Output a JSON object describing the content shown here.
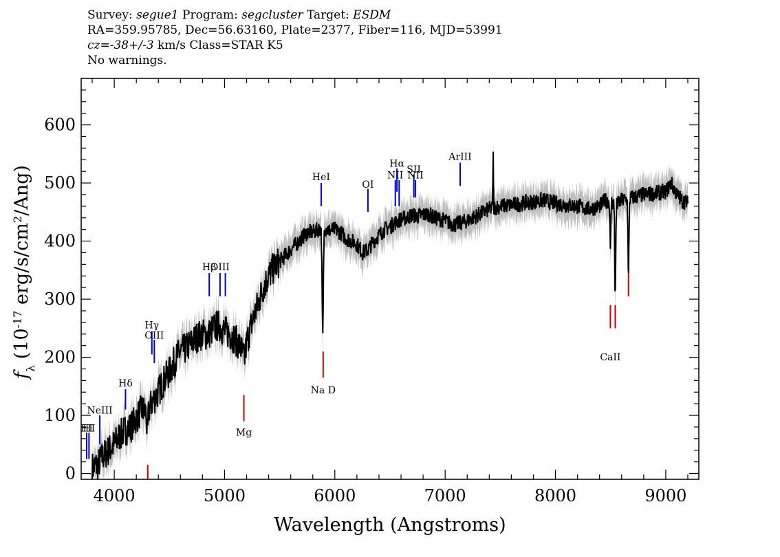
{
  "header": {
    "survey_label": "Survey:",
    "survey": "segue1",
    "program_label": "Program:",
    "program": "segcluster",
    "target_label": "Target:",
    "target": "ESDM",
    "line2": "RA=359.95785, Dec=56.63160, Plate=2377, Fiber=116, MJD=53991",
    "cz_label": "cz=",
    "cz_value": "-38+/-3",
    "cz_unit_class": "km/s Class=STAR K5",
    "warnings": "No warnings."
  },
  "colors": {
    "spectrum": "#000000",
    "error_band": "#bdbdbd",
    "emission_line": "#0000cc",
    "absorption_line": "#cc0000"
  },
  "chart_data": {
    "type": "line",
    "title": "",
    "xlabel": "Wavelength (Angstroms)",
    "ylabel": "f_λ (10^-17 erg/s/cm^2/Ang)",
    "xlim": [
      3700,
      9300
    ],
    "ylim": [
      -10,
      680
    ],
    "xticks": [
      4000,
      5000,
      6000,
      7000,
      8000,
      9000
    ],
    "yticks": [
      0,
      100,
      200,
      300,
      400,
      500,
      600
    ],
    "spectrum_anchors": [
      [
        3800,
        10
      ],
      [
        3850,
        15
      ],
      [
        3900,
        30
      ],
      [
        3950,
        40
      ],
      [
        4000,
        50
      ],
      [
        4050,
        65
      ],
      [
        4100,
        75
      ],
      [
        4150,
        80
      ],
      [
        4200,
        95
      ],
      [
        4250,
        110
      ],
      [
        4300,
        105
      ],
      [
        4350,
        125
      ],
      [
        4400,
        140
      ],
      [
        4450,
        160
      ],
      [
        4500,
        175
      ],
      [
        4550,
        195
      ],
      [
        4600,
        210
      ],
      [
        4650,
        215
      ],
      [
        4700,
        225
      ],
      [
        4750,
        235
      ],
      [
        4800,
        240
      ],
      [
        4850,
        238
      ],
      [
        4900,
        250
      ],
      [
        4950,
        255
      ],
      [
        5000,
        245
      ],
      [
        5050,
        240
      ],
      [
        5100,
        230
      ],
      [
        5150,
        215
      ],
      [
        5180,
        195
      ],
      [
        5200,
        225
      ],
      [
        5250,
        260
      ],
      [
        5300,
        290
      ],
      [
        5350,
        320
      ],
      [
        5400,
        340
      ],
      [
        5450,
        355
      ],
      [
        5500,
        365
      ],
      [
        5550,
        375
      ],
      [
        5600,
        385
      ],
      [
        5650,
        395
      ],
      [
        5700,
        405
      ],
      [
        5750,
        415
      ],
      [
        5800,
        415
      ],
      [
        5850,
        420
      ],
      [
        5900,
        425
      ],
      [
        5950,
        418
      ],
      [
        6000,
        420
      ],
      [
        6050,
        415
      ],
      [
        6100,
        405
      ],
      [
        6150,
        400
      ],
      [
        6200,
        395
      ],
      [
        6250,
        380
      ],
      [
        6300,
        385
      ],
      [
        6350,
        400
      ],
      [
        6400,
        410
      ],
      [
        6450,
        420
      ],
      [
        6500,
        425
      ],
      [
        6550,
        432
      ],
      [
        6600,
        438
      ],
      [
        6650,
        440
      ],
      [
        6700,
        445
      ],
      [
        6750,
        443
      ],
      [
        6800,
        445
      ],
      [
        6850,
        447
      ],
      [
        6900,
        440
      ],
      [
        6950,
        438
      ],
      [
        7000,
        435
      ],
      [
        7050,
        430
      ],
      [
        7100,
        428
      ],
      [
        7150,
        432
      ],
      [
        7200,
        435
      ],
      [
        7250,
        440
      ],
      [
        7300,
        445
      ],
      [
        7350,
        450
      ],
      [
        7400,
        455
      ],
      [
        7450,
        458
      ],
      [
        7500,
        460
      ],
      [
        7600,
        462
      ],
      [
        7700,
        465
      ],
      [
        7800,
        468
      ],
      [
        7900,
        470
      ],
      [
        8000,
        465
      ],
      [
        8100,
        462
      ],
      [
        8200,
        460
      ],
      [
        8300,
        455
      ],
      [
        8400,
        460
      ],
      [
        8450,
        470
      ],
      [
        8500,
        468
      ],
      [
        8550,
        462
      ],
      [
        8600,
        470
      ],
      [
        8650,
        472
      ],
      [
        8700,
        475
      ],
      [
        8800,
        480
      ],
      [
        8900,
        482
      ],
      [
        9000,
        485
      ],
      [
        9050,
        500
      ],
      [
        9100,
        480
      ],
      [
        9150,
        470
      ],
      [
        9200,
        465
      ]
    ],
    "absorption_dips": [
      {
        "x": 5890,
        "depth": 190,
        "width": 8
      },
      {
        "x": 8498,
        "depth": 90,
        "width": 5
      },
      {
        "x": 8542,
        "depth": 160,
        "width": 6
      },
      {
        "x": 8662,
        "depth": 140,
        "width": 6
      },
      {
        "x": 4300,
        "depth": 40,
        "width": 8
      }
    ],
    "emission_spikes": [
      {
        "x": 7435,
        "height": 100,
        "width": 3
      }
    ],
    "emission_lines": [
      {
        "label": "HI",
        "x": 3750,
        "y_low": 25,
        "y_high": 70,
        "label_y": 72
      },
      {
        "label": "HI",
        "x": 3771,
        "y_low": 25,
        "y_high": 70,
        "label_y": 72
      },
      {
        "label": "NeIII",
        "x": 3869,
        "y_low": 50,
        "y_high": 100,
        "label_y": 103
      },
      {
        "label": "Hδ",
        "x": 4102,
        "y_low": 110,
        "y_high": 145,
        "label_y": 150
      },
      {
        "label": "Hγ",
        "x": 4341,
        "y_low": 205,
        "y_high": 245,
        "label_y": 250
      },
      {
        "label": "OIII",
        "x": 4363,
        "y_low": 190,
        "y_high": 230,
        "label_y": 232
      },
      {
        "label": "Hβ",
        "x": 4861,
        "y_low": 305,
        "y_high": 345,
        "label_y": 350
      },
      {
        "label": "OIII",
        "x": 4959,
        "y_low": 305,
        "y_high": 345,
        "label_y": 350
      },
      {
        "label": "OIII",
        "x": 5007,
        "y_low": 305,
        "y_high": 345,
        "label_y": 0
      },
      {
        "label": "HeI",
        "x": 5876,
        "y_low": 460,
        "y_high": 500,
        "label_y": 505
      },
      {
        "label": "OI",
        "x": 6300,
        "y_low": 450,
        "y_high": 490,
        "label_y": 492
      },
      {
        "label": "NII",
        "x": 6548,
        "y_low": 460,
        "y_high": 505,
        "label_y": 508
      },
      {
        "label": "Hα",
        "x": 6563,
        "y_low": 485,
        "y_high": 525,
        "label_y": 528
      },
      {
        "label": "NII",
        "x": 6583,
        "y_low": 460,
        "y_high": 505,
        "label_y": 0
      },
      {
        "label": "SII",
        "x": 6716,
        "y_low": 475,
        "y_high": 515,
        "label_y": 518
      },
      {
        "label": "NII",
        "x": 6731,
        "y_low": 475,
        "y_high": 505,
        "label_y": 508
      },
      {
        "label": "ArIII",
        "x": 7136,
        "y_low": 495,
        "y_high": 535,
        "label_y": 540
      }
    ],
    "absorption_lines": [
      {
        "label": "",
        "x": 4304,
        "y_low": -10,
        "y_high": 15,
        "label_y": 0
      },
      {
        "label": "Mg",
        "x": 5175,
        "y_low": 90,
        "y_high": 135,
        "label_y": 65
      },
      {
        "label": "Na D",
        "x": 5894,
        "y_low": 165,
        "y_high": 210,
        "label_y": 138
      },
      {
        "label": "CaII",
        "x": 8498,
        "y_low": 250,
        "y_high": 290,
        "label_y": 195
      },
      {
        "label": "CaII",
        "x": 8542,
        "y_low": 250,
        "y_high": 290,
        "label_y": 0
      },
      {
        "label": "",
        "x": 8662,
        "y_low": 305,
        "y_high": 345,
        "label_y": 0
      }
    ]
  }
}
